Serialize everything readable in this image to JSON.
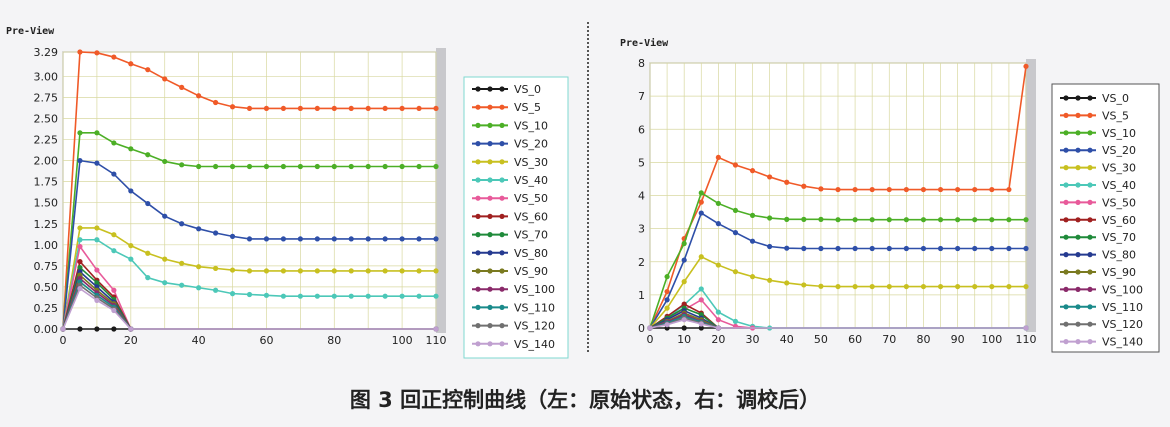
{
  "caption": "图 3 回正控制曲线（左：原始状态，右：调校后）",
  "colors": {
    "VS_0": "#1a1a1a",
    "VS_5": "#f05a28",
    "VS_10": "#4caf26",
    "VS_20": "#2e4fa8",
    "VS_30": "#c8c020",
    "VS_40": "#4cc8b8",
    "VS_50": "#e85a9a",
    "VS_60": "#a02020",
    "VS_70": "#1f8a3a",
    "VS_80": "#253a90",
    "VS_90": "#7a7a20",
    "VS_100": "#8a2a6a",
    "VS_110": "#1a8a8a",
    "VS_120": "#707070",
    "VS_140": "#c0a0d0"
  },
  "chart_data": [
    {
      "type": "line",
      "title": "Pre-View",
      "xlabel": "",
      "ylabel": "",
      "xlim": [
        0,
        110
      ],
      "ylim": [
        0,
        3.29
      ],
      "x_ticks": [
        0,
        20,
        40,
        60,
        80,
        100,
        110
      ],
      "y_ticks": [
        "0.00",
        "0.25",
        "0.50",
        "0.75",
        "1.00",
        "1.25",
        "1.50",
        "1.75",
        "2.00",
        "2.25",
        "2.50",
        "2.75",
        "3.00",
        "3.29"
      ],
      "grid": true,
      "legend": "right",
      "series": [
        {
          "name": "VS_0",
          "x": [
            0,
            5,
            10,
            15,
            20,
            110
          ],
          "y": [
            0,
            0,
            0,
            0,
            0,
            0
          ]
        },
        {
          "name": "VS_5",
          "x": [
            0,
            5,
            10,
            15,
            20,
            25,
            30,
            35,
            40,
            45,
            50,
            55,
            60,
            65,
            70,
            75,
            80,
            85,
            90,
            95,
            100,
            105,
            110
          ],
          "y": [
            0,
            3.29,
            3.28,
            3.23,
            3.15,
            3.08,
            2.97,
            2.87,
            2.77,
            2.69,
            2.64,
            2.62,
            2.62,
            2.62,
            2.62,
            2.62,
            2.62,
            2.62,
            2.62,
            2.62,
            2.62,
            2.62,
            2.62
          ]
        },
        {
          "name": "VS_10",
          "x": [
            0,
            5,
            10,
            15,
            20,
            25,
            30,
            35,
            40,
            45,
            50,
            55,
            60,
            65,
            70,
            75,
            80,
            85,
            90,
            95,
            100,
            105,
            110
          ],
          "y": [
            0,
            2.33,
            2.33,
            2.21,
            2.14,
            2.07,
            1.99,
            1.95,
            1.93,
            1.93,
            1.93,
            1.93,
            1.93,
            1.93,
            1.93,
            1.93,
            1.93,
            1.93,
            1.93,
            1.93,
            1.93,
            1.93,
            1.93
          ]
        },
        {
          "name": "VS_20",
          "x": [
            0,
            5,
            10,
            15,
            20,
            25,
            30,
            35,
            40,
            45,
            50,
            55,
            60,
            65,
            70,
            75,
            80,
            85,
            90,
            95,
            100,
            105,
            110
          ],
          "y": [
            0,
            2.0,
            1.97,
            1.84,
            1.64,
            1.49,
            1.34,
            1.25,
            1.19,
            1.14,
            1.1,
            1.07,
            1.07,
            1.07,
            1.07,
            1.07,
            1.07,
            1.07,
            1.07,
            1.07,
            1.07,
            1.07,
            1.07
          ]
        },
        {
          "name": "VS_30",
          "x": [
            0,
            5,
            10,
            15,
            20,
            25,
            30,
            35,
            40,
            45,
            50,
            55,
            60,
            65,
            70,
            75,
            80,
            85,
            90,
            95,
            100,
            105,
            110
          ],
          "y": [
            0,
            1.2,
            1.2,
            1.12,
            0.99,
            0.9,
            0.83,
            0.78,
            0.74,
            0.72,
            0.7,
            0.69,
            0.69,
            0.69,
            0.69,
            0.69,
            0.69,
            0.69,
            0.69,
            0.69,
            0.69,
            0.69,
            0.69
          ]
        },
        {
          "name": "VS_40",
          "x": [
            0,
            5,
            10,
            15,
            20,
            25,
            30,
            35,
            40,
            45,
            50,
            55,
            60,
            65,
            70,
            75,
            80,
            85,
            90,
            95,
            100,
            105,
            110
          ],
          "y": [
            0,
            1.06,
            1.06,
            0.93,
            0.83,
            0.61,
            0.55,
            0.52,
            0.49,
            0.46,
            0.42,
            0.41,
            0.4,
            0.39,
            0.39,
            0.39,
            0.39,
            0.39,
            0.39,
            0.39,
            0.39,
            0.39,
            0.39
          ]
        },
        {
          "name": "VS_50",
          "x": [
            0,
            5,
            10,
            15,
            20
          ],
          "y": [
            0,
            0.98,
            0.7,
            0.46,
            0
          ]
        },
        {
          "name": "VS_60",
          "x": [
            0,
            5,
            10,
            15,
            20
          ],
          "y": [
            0,
            0.8,
            0.58,
            0.38,
            0
          ]
        },
        {
          "name": "VS_70",
          "x": [
            0,
            5,
            10,
            15,
            20
          ],
          "y": [
            0,
            0.73,
            0.55,
            0.35,
            0
          ]
        },
        {
          "name": "VS_80",
          "x": [
            0,
            5,
            10,
            15,
            20
          ],
          "y": [
            0,
            0.68,
            0.5,
            0.32,
            0
          ]
        },
        {
          "name": "VS_90",
          "x": [
            0,
            5,
            10,
            15,
            20
          ],
          "y": [
            0,
            0.64,
            0.46,
            0.3,
            0
          ]
        },
        {
          "name": "VS_100",
          "x": [
            0,
            5,
            10,
            15,
            20
          ],
          "y": [
            0,
            0.6,
            0.43,
            0.28,
            0
          ]
        },
        {
          "name": "VS_110",
          "x": [
            0,
            5,
            10,
            15,
            20
          ],
          "y": [
            0,
            0.56,
            0.4,
            0.26,
            0
          ]
        },
        {
          "name": "VS_120",
          "x": [
            0,
            5,
            10,
            15,
            20
          ],
          "y": [
            0,
            0.52,
            0.37,
            0.24,
            0
          ]
        },
        {
          "name": "VS_140",
          "x": [
            0,
            5,
            10,
            15,
            20,
            110
          ],
          "y": [
            0,
            0.48,
            0.34,
            0.22,
            0,
            0
          ]
        }
      ]
    },
    {
      "type": "line",
      "title": "Pre-View",
      "xlabel": "",
      "ylabel": "",
      "xlim": [
        0,
        110
      ],
      "ylim": [
        0,
        8
      ],
      "x_ticks": [
        0,
        10,
        20,
        30,
        40,
        50,
        60,
        70,
        80,
        90,
        100,
        110
      ],
      "y_ticks": [
        "0",
        "1",
        "2",
        "3",
        "4",
        "5",
        "6",
        "7",
        "8"
      ],
      "grid": true,
      "legend": "right",
      "series": [
        {
          "name": "VS_0",
          "x": [
            0,
            5,
            10,
            15,
            20,
            110
          ],
          "y": [
            0,
            0,
            0,
            0,
            0,
            0
          ]
        },
        {
          "name": "VS_5",
          "x": [
            0,
            5,
            10,
            15,
            20,
            25,
            30,
            35,
            40,
            45,
            50,
            55,
            60,
            65,
            70,
            75,
            80,
            85,
            90,
            95,
            100,
            105,
            110
          ],
          "y": [
            0,
            1.1,
            2.7,
            3.8,
            5.15,
            4.92,
            4.75,
            4.56,
            4.4,
            4.28,
            4.2,
            4.18,
            4.18,
            4.18,
            4.18,
            4.18,
            4.18,
            4.18,
            4.18,
            4.18,
            4.18,
            4.18,
            7.9
          ]
        },
        {
          "name": "VS_10",
          "x": [
            0,
            5,
            10,
            15,
            20,
            25,
            30,
            35,
            40,
            45,
            50,
            55,
            60,
            65,
            70,
            75,
            80,
            85,
            90,
            95,
            100,
            105,
            110
          ],
          "y": [
            0,
            1.55,
            2.55,
            4.08,
            3.76,
            3.55,
            3.4,
            3.32,
            3.28,
            3.28,
            3.28,
            3.27,
            3.27,
            3.27,
            3.27,
            3.27,
            3.27,
            3.27,
            3.27,
            3.27,
            3.27,
            3.27,
            3.27
          ]
        },
        {
          "name": "VS_20",
          "x": [
            0,
            5,
            10,
            15,
            20,
            25,
            30,
            35,
            40,
            45,
            50,
            55,
            60,
            65,
            70,
            75,
            80,
            85,
            90,
            95,
            100,
            105,
            110
          ],
          "y": [
            0,
            0.85,
            2.05,
            3.47,
            3.15,
            2.88,
            2.62,
            2.46,
            2.41,
            2.4,
            2.4,
            2.4,
            2.4,
            2.4,
            2.4,
            2.4,
            2.4,
            2.4,
            2.4,
            2.4,
            2.4,
            2.4,
            2.4
          ]
        },
        {
          "name": "VS_30",
          "x": [
            0,
            5,
            10,
            15,
            20,
            25,
            30,
            35,
            40,
            45,
            50,
            55,
            60,
            65,
            70,
            75,
            80,
            85,
            90,
            95,
            100,
            105,
            110
          ],
          "y": [
            0,
            0.6,
            1.4,
            2.15,
            1.9,
            1.7,
            1.55,
            1.44,
            1.36,
            1.3,
            1.26,
            1.25,
            1.25,
            1.25,
            1.25,
            1.25,
            1.25,
            1.25,
            1.25,
            1.25,
            1.25,
            1.25,
            1.25
          ]
        },
        {
          "name": "VS_40",
          "x": [
            0,
            5,
            10,
            15,
            20,
            25,
            30,
            35,
            110
          ],
          "y": [
            0,
            0.3,
            0.7,
            1.18,
            0.48,
            0.2,
            0.05,
            0,
            0
          ]
        },
        {
          "name": "VS_50",
          "x": [
            0,
            5,
            10,
            15,
            20,
            25,
            30
          ],
          "y": [
            0,
            0.25,
            0.55,
            0.85,
            0.25,
            0.05,
            0
          ]
        },
        {
          "name": "VS_60",
          "x": [
            0,
            5,
            10,
            15,
            20
          ],
          "y": [
            0,
            0.35,
            0.72,
            0.45,
            0
          ]
        },
        {
          "name": "VS_70",
          "x": [
            0,
            5,
            10,
            15,
            20
          ],
          "y": [
            0,
            0.3,
            0.6,
            0.4,
            0
          ]
        },
        {
          "name": "VS_80",
          "x": [
            0,
            5,
            10,
            15,
            20
          ],
          "y": [
            0,
            0.25,
            0.52,
            0.3,
            0
          ]
        },
        {
          "name": "VS_90",
          "x": [
            0,
            5,
            10,
            15,
            20
          ],
          "y": [
            0,
            0.2,
            0.45,
            0.25,
            0
          ]
        },
        {
          "name": "VS_100",
          "x": [
            0,
            5,
            10,
            15,
            20
          ],
          "y": [
            0,
            0.18,
            0.4,
            0.2,
            0
          ]
        },
        {
          "name": "VS_110",
          "x": [
            0,
            5,
            10,
            15,
            20
          ],
          "y": [
            0,
            0.15,
            0.35,
            0.18,
            0
          ]
        },
        {
          "name": "VS_120",
          "x": [
            0,
            5,
            10,
            15,
            20
          ],
          "y": [
            0,
            0.12,
            0.3,
            0.15,
            0
          ]
        },
        {
          "name": "VS_140",
          "x": [
            0,
            5,
            10,
            15,
            20,
            110
          ],
          "y": [
            0,
            0.1,
            0.25,
            0.12,
            0,
            0
          ]
        }
      ]
    }
  ]
}
